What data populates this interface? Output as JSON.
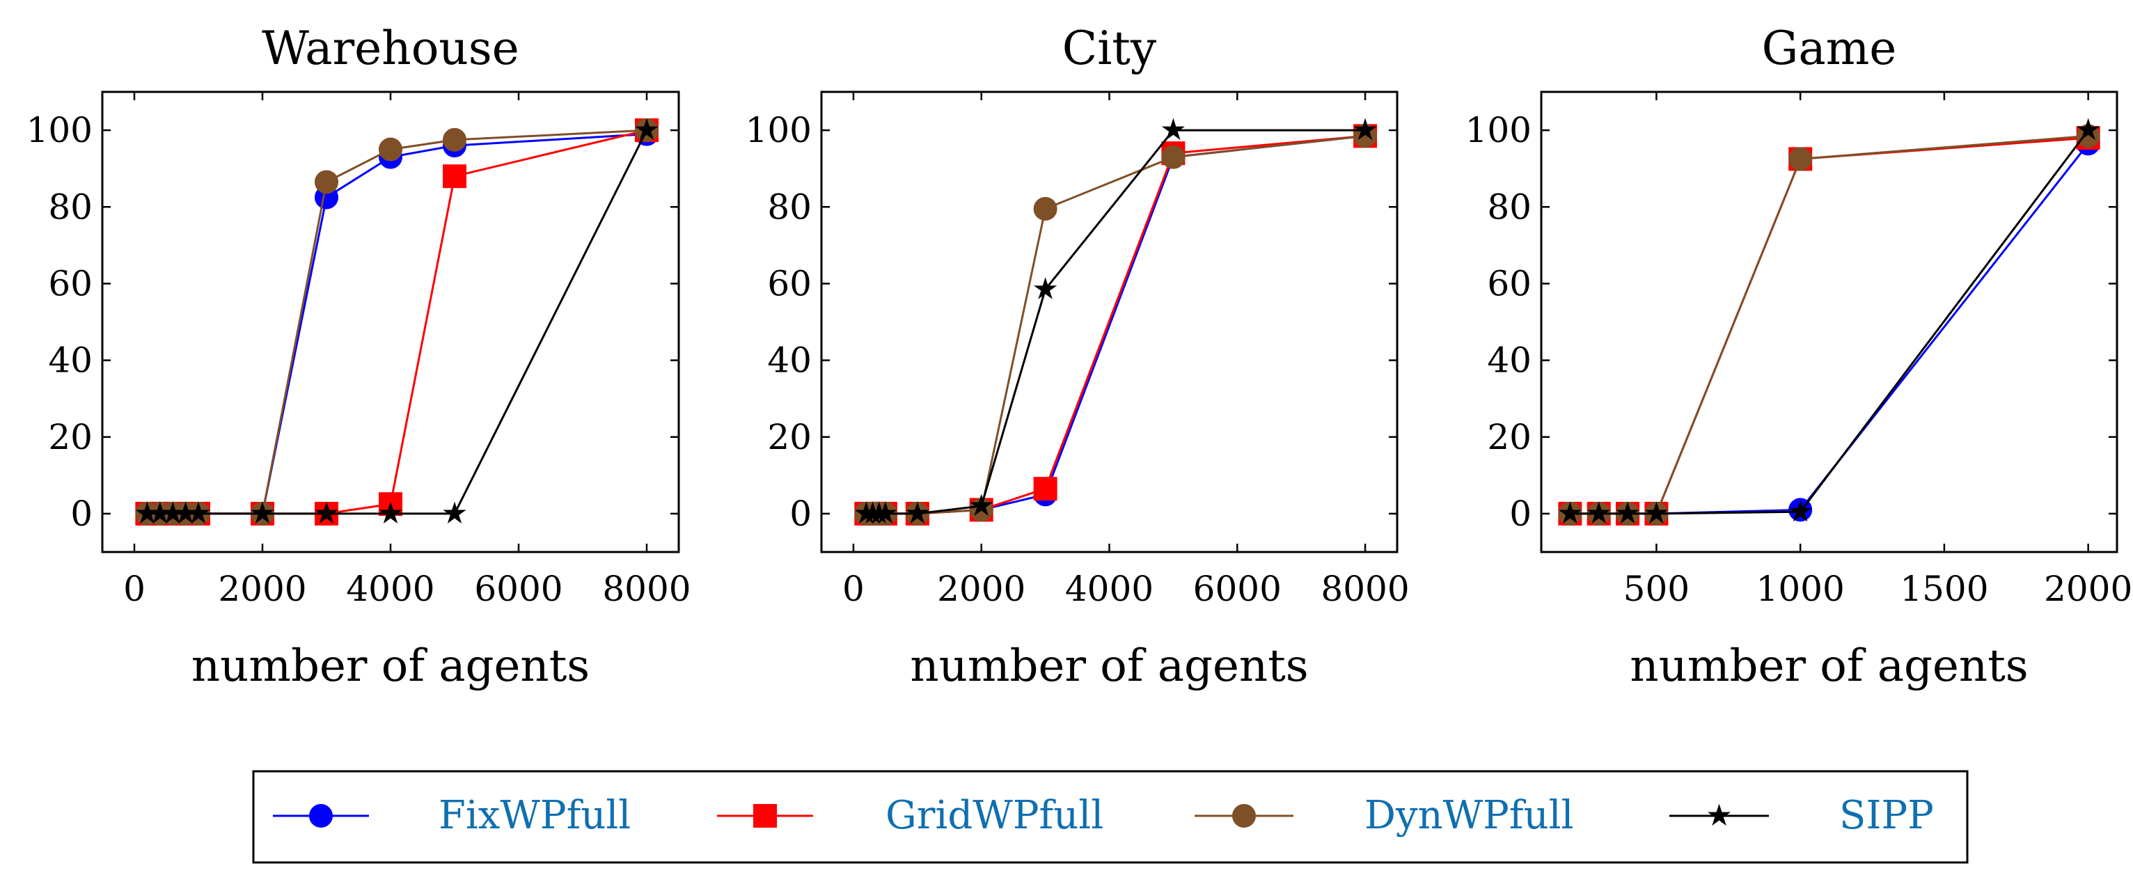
{
  "colors": {
    "FixWPfull": "#0000ff",
    "GridWPfull": "#ff0000",
    "DynWPfull": "#7f4f26",
    "SIPP": "#000000",
    "legend_text": "#0f6fb0"
  },
  "legend": {
    "position": "bottom-center",
    "entries": [
      {
        "name": "FixWPfull",
        "marker": "circle"
      },
      {
        "name": "GridWPfull",
        "marker": "square"
      },
      {
        "name": "DynWPfull",
        "marker": "circle"
      },
      {
        "name": "SIPP",
        "marker": "star"
      }
    ]
  },
  "chart_data": [
    {
      "type": "line",
      "title": "Warehouse",
      "xlabel": "number of agents",
      "ylabel": "",
      "xlim": [
        -500,
        8500
      ],
      "ylim": [
        -10,
        110
      ],
      "xticks": [
        0,
        2000,
        4000,
        6000,
        8000
      ],
      "xtick_labels": [
        "0",
        "2000",
        "4000",
        "6000",
        "8000"
      ],
      "yticks": [
        0,
        20,
        40,
        60,
        80,
        100
      ],
      "ytick_labels": [
        "0",
        "20",
        "40",
        "60",
        "80",
        "100"
      ],
      "series": [
        {
          "name": "FixWPfull",
          "x": [
            200,
            400,
            600,
            800,
            1000,
            2000,
            3000,
            4000,
            5000,
            8000
          ],
          "y": [
            0,
            0,
            0,
            0,
            0,
            0,
            82.5,
            93,
            96,
            99
          ]
        },
        {
          "name": "GridWPfull",
          "x": [
            200,
            400,
            600,
            800,
            1000,
            2000,
            3000,
            4000,
            5000,
            8000
          ],
          "y": [
            0,
            0,
            0,
            0,
            0,
            0,
            0,
            2.5,
            88,
            100
          ]
        },
        {
          "name": "DynWPfull",
          "x": [
            200,
            400,
            600,
            800,
            1000,
            2000,
            3000,
            4000,
            5000,
            8000
          ],
          "y": [
            0,
            0,
            0,
            0,
            0,
            0,
            86.5,
            95,
            97.5,
            100
          ]
        },
        {
          "name": "SIPP",
          "x": [
            200,
            400,
            600,
            800,
            1000,
            2000,
            3000,
            4000,
            5000,
            8000
          ],
          "y": [
            0,
            0,
            0,
            0,
            0,
            0,
            0,
            0,
            0,
            100
          ]
        }
      ]
    },
    {
      "type": "line",
      "title": "City",
      "xlabel": "number of agents",
      "ylabel": "",
      "xlim": [
        -500,
        8500
      ],
      "ylim": [
        -10,
        110
      ],
      "xticks": [
        0,
        2000,
        4000,
        6000,
        8000
      ],
      "xtick_labels": [
        "0",
        "2000",
        "4000",
        "6000",
        "8000"
      ],
      "yticks": [
        0,
        20,
        40,
        60,
        80,
        100
      ],
      "ytick_labels": [
        "0",
        "20",
        "40",
        "60",
        "80",
        "100"
      ],
      "series": [
        {
          "name": "FixWPfull",
          "x": [
            200,
            300,
            400,
            500,
            1000,
            2000,
            3000,
            5000,
            8000
          ],
          "y": [
            0,
            0,
            0,
            0,
            0,
            1,
            5,
            93,
            98.5
          ]
        },
        {
          "name": "GridWPfull",
          "x": [
            200,
            300,
            400,
            500,
            1000,
            2000,
            3000,
            5000,
            8000
          ],
          "y": [
            0,
            0,
            0,
            0,
            0,
            1,
            6.5,
            94,
            98.5
          ]
        },
        {
          "name": "DynWPfull",
          "x": [
            200,
            300,
            400,
            500,
            1000,
            2000,
            3000,
            5000,
            8000
          ],
          "y": [
            0,
            0,
            0,
            0,
            0,
            1,
            79.5,
            93,
            98.5
          ]
        },
        {
          "name": "SIPP",
          "x": [
            200,
            300,
            400,
            500,
            1000,
            2000,
            3000,
            5000,
            8000
          ],
          "y": [
            0,
            0,
            0,
            0,
            0,
            2,
            58.5,
            100,
            100
          ]
        }
      ]
    },
    {
      "type": "line",
      "title": "Game",
      "xlabel": "number of agents",
      "ylabel": "",
      "xlim": [
        100,
        2100
      ],
      "ylim": [
        -10,
        110
      ],
      "xticks": [
        500,
        1000,
        1500,
        2000
      ],
      "xtick_labels": [
        "500",
        "1000",
        "1500",
        "2000"
      ],
      "yticks": [
        0,
        20,
        40,
        60,
        80,
        100
      ],
      "ytick_labels": [
        "0",
        "20",
        "40",
        "60",
        "80",
        "100"
      ],
      "series": [
        {
          "name": "FixWPfull",
          "x": [
            200,
            300,
            400,
            500,
            1000,
            2000
          ],
          "y": [
            0,
            0,
            0,
            0,
            1,
            96.5
          ]
        },
        {
          "name": "GridWPfull",
          "x": [
            200,
            300,
            400,
            500,
            1000,
            2000
          ],
          "y": [
            0,
            0,
            0,
            0,
            92.5,
            98
          ]
        },
        {
          "name": "DynWPfull",
          "x": [
            200,
            300,
            400,
            500,
            1000,
            2000
          ],
          "y": [
            0,
            0,
            0,
            0,
            92.5,
            98.5
          ]
        },
        {
          "name": "SIPP",
          "x": [
            200,
            300,
            400,
            500,
            1000,
            2000
          ],
          "y": [
            0,
            0,
            0,
            0,
            0.5,
            100
          ]
        }
      ]
    }
  ]
}
